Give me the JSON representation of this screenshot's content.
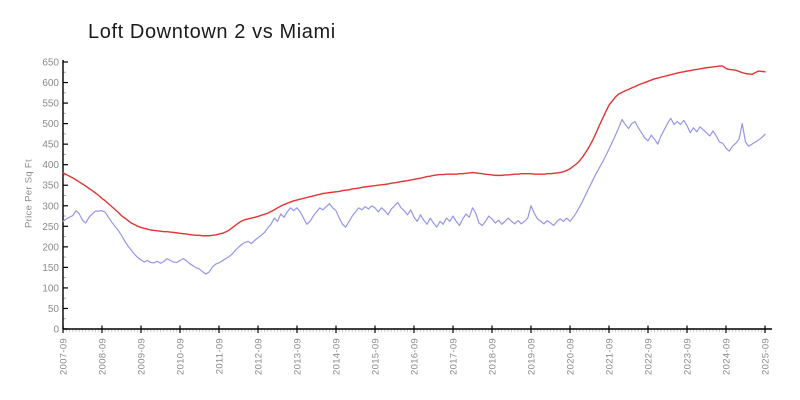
{
  "chart": {
    "title": "Loft Downtown 2 vs Miami",
    "y_axis_label": "Price Per Sq Ft"
  },
  "colors": {
    "miami_line": "#e23433",
    "loft_line": "#9596e8",
    "axis": "#000000",
    "minor_tick": "#c8c8c8",
    "tick_label": "#8a8a8a",
    "title_text": "#1b1b1b"
  },
  "chart_data": {
    "type": "line",
    "title": "Loft Downtown 2 vs Miami",
    "xlabel": "",
    "ylabel": "Price Per Sq Ft",
    "ylim": [
      0,
      650
    ],
    "y_ticks": [
      0,
      50,
      100,
      150,
      200,
      250,
      300,
      350,
      400,
      450,
      500,
      550,
      600,
      650
    ],
    "y_minor_step": 25,
    "x_minor": "monthly",
    "grid": false,
    "legend_position": "none",
    "x_start": "2007-09",
    "x_interval": "month",
    "x_tick_labels": [
      "2007-09",
      "2008-09",
      "2009-09",
      "2010-09",
      "2011-09",
      "2012-09",
      "2013-09",
      "2014-09",
      "2015-09",
      "2016-09",
      "2017-09",
      "2018-09",
      "2019-09",
      "2020-09",
      "2021-09",
      "2022-09",
      "2023-09",
      "2024-09",
      "2025-09"
    ],
    "x_tick_month_index": [
      0,
      12,
      24,
      36,
      48,
      60,
      72,
      84,
      96,
      108,
      120,
      132,
      144,
      156,
      168,
      180,
      192,
      204,
      216
    ],
    "series": [
      {
        "name": "Loft Downtown 2",
        "color": "#9596e8",
        "values": [
          262,
          268,
          272,
          276,
          288,
          280,
          265,
          258,
          272,
          280,
          287,
          287,
          288,
          284,
          272,
          260,
          250,
          240,
          228,
          214,
          202,
          192,
          182,
          174,
          168,
          163,
          167,
          162,
          161,
          165,
          160,
          164,
          171,
          167,
          163,
          162,
          167,
          171,
          166,
          159,
          154,
          149,
          146,
          139,
          134,
          139,
          151,
          158,
          161,
          166,
          171,
          176,
          182,
          191,
          199,
          206,
          211,
          213,
          208,
          216,
          222,
          228,
          235,
          246,
          255,
          270,
          262,
          280,
          272,
          285,
          295,
          288,
          295,
          285,
          270,
          255,
          262,
          275,
          285,
          295,
          290,
          298,
          305,
          295,
          288,
          270,
          255,
          248,
          262,
          275,
          285,
          295,
          290,
          298,
          292,
          300,
          295,
          285,
          295,
          288,
          278,
          292,
          300,
          308,
          295,
          288,
          278,
          290,
          272,
          262,
          278,
          265,
          255,
          270,
          258,
          248,
          262,
          255,
          270,
          262,
          275,
          262,
          252,
          268,
          280,
          272,
          295,
          282,
          258,
          252,
          262,
          275,
          268,
          258,
          265,
          255,
          262,
          270,
          262,
          256,
          264,
          256,
          262,
          270,
          300,
          282,
          268,
          262,
          256,
          264,
          258,
          252,
          262,
          268,
          262,
          270,
          262,
          272,
          284,
          298,
          313,
          330,
          346,
          362,
          378,
          392,
          406,
          422,
          438,
          455,
          472,
          490,
          510,
          498,
          488,
          500,
          505,
          490,
          478,
          465,
          458,
          472,
          462,
          450,
          470,
          485,
          500,
          513,
          498,
          505,
          498,
          508,
          495,
          478,
          490,
          480,
          492,
          485,
          478,
          470,
          482,
          470,
          455,
          452,
          440,
          433,
          445,
          452,
          462,
          500,
          455,
          445,
          450,
          455,
          460,
          466,
          474
        ]
      },
      {
        "name": "Miami",
        "color": "#e23433",
        "values": [
          380,
          376,
          372,
          368,
          363,
          358,
          353,
          348,
          342,
          337,
          331,
          325,
          318,
          312,
          305,
          298,
          291,
          284,
          276,
          270,
          264,
          258,
          254,
          250,
          247,
          245,
          243,
          241,
          240,
          239,
          238,
          237,
          237,
          236,
          235,
          234,
          233,
          232,
          231,
          230,
          229,
          228,
          228,
          227,
          227,
          227,
          228,
          229,
          231,
          233,
          236,
          240,
          246,
          252,
          258,
          263,
          266,
          268,
          270,
          272,
          274,
          277,
          279,
          282,
          286,
          290,
          295,
          299,
          303,
          306,
          309,
          312,
          314,
          316,
          318,
          320,
          322,
          324,
          326,
          328,
          330,
          331,
          332,
          333,
          334,
          335,
          337,
          338,
          339,
          341,
          342,
          343,
          345,
          346,
          347,
          348,
          349,
          350,
          351,
          352,
          353,
          355,
          356,
          357,
          359,
          360,
          361,
          363,
          364,
          366,
          367,
          369,
          371,
          372,
          374,
          375,
          376,
          376,
          377,
          377,
          377,
          377,
          378,
          378,
          379,
          380,
          381,
          380,
          379,
          378,
          377,
          376,
          375,
          374,
          374,
          374,
          375,
          375,
          376,
          377,
          377,
          378,
          378,
          378,
          378,
          377,
          377,
          377,
          377,
          378,
          378,
          379,
          380,
          381,
          383,
          386,
          390,
          396,
          402,
          410,
          420,
          432,
          445,
          460,
          477,
          495,
          512,
          529,
          545,
          555,
          565,
          572,
          576,
          580,
          583,
          587,
          590,
          594,
          597,
          600,
          603,
          606,
          609,
          611,
          613,
          615,
          617,
          619,
          621,
          623,
          625,
          626,
          628,
          629,
          631,
          632,
          633,
          635,
          636,
          637,
          638,
          639,
          640,
          640,
          634,
          632,
          631,
          630,
          627,
          624,
          622,
          621,
          620,
          624,
          628,
          627,
          626
        ]
      }
    ]
  }
}
